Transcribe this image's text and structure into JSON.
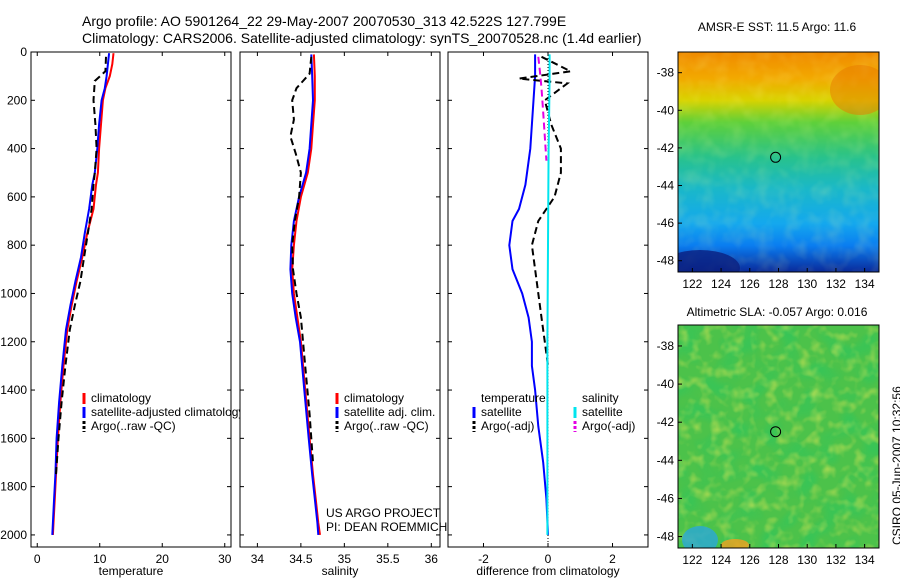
{
  "header": {
    "line1": "Argo profile: AO 5901264_22 29-May-2007 20070530_313 42.522S 127.799E",
    "line2": "Climatology: CARS2006. Satellite-adjusted climatology: synTS_20070528.nc (1.4d earlier)"
  },
  "footer_side": "CSIRO 05-Jun-2007 10:32:56",
  "colors": {
    "climatology": "#ff0000",
    "satellite": "#0000ff",
    "argo": "#000000",
    "salinity_satellite": "#00e5ee",
    "salinity_argo": "#e400e4"
  },
  "chart_data": [
    {
      "type": "line",
      "id": "temperature",
      "xlabel": "temperature",
      "ylabel": "",
      "xlim": [
        -1,
        31
      ],
      "ylim": [
        2050,
        0
      ],
      "xticks": [
        0,
        10,
        20,
        30
      ],
      "yticks": [
        0,
        200,
        400,
        600,
        800,
        1000,
        1200,
        1400,
        1600,
        1800,
        2000
      ],
      "y_inverted": true,
      "legend": [
        "climatology",
        "satellite-adjusted climatology",
        "Argo(..raw -QC)"
      ],
      "series": [
        {
          "name": "climatology",
          "color": "#ff0000",
          "style": "solid",
          "x": [
            12.2,
            12.0,
            11.6,
            10.9,
            10.5,
            10.2,
            9.9,
            9.7,
            9.4,
            9.0,
            8.0,
            7.2,
            6.3,
            5.5,
            4.8,
            4.2,
            3.7,
            3.3,
            3.0,
            2.8,
            2.6,
            2.5
          ],
          "y": [
            5,
            50,
            100,
            150,
            200,
            300,
            400,
            500,
            550,
            650,
            750,
            850,
            950,
            1050,
            1150,
            1300,
            1450,
            1600,
            1750,
            1850,
            1950,
            2000
          ]
        },
        {
          "name": "satellite-adjusted climatology",
          "color": "#0000ff",
          "style": "solid",
          "x": [
            11.5,
            11.3,
            11.1,
            10.8,
            10.3,
            9.9,
            9.6,
            9.2,
            8.8,
            8.3,
            7.6,
            7.0,
            6.1,
            5.3,
            4.6,
            4.0,
            3.5,
            3.1,
            2.9,
            2.7,
            2.5,
            2.4
          ],
          "y": [
            5,
            50,
            100,
            150,
            200,
            300,
            400,
            500,
            550,
            650,
            750,
            850,
            950,
            1050,
            1150,
            1300,
            1450,
            1600,
            1750,
            1850,
            1950,
            2000
          ]
        },
        {
          "name": "Argo(..raw -QC)",
          "color": "#000000",
          "style": "dashed",
          "x": [
            11.0,
            10.9,
            9.2,
            9.0,
            9.3,
            9.5,
            9.2,
            9.0,
            8.7,
            8.1,
            7.5,
            6.9,
            6.0,
            5.2,
            4.5,
            3.9,
            3.4,
            3.0
          ],
          "y": [
            20,
            80,
            120,
            200,
            300,
            400,
            500,
            550,
            650,
            750,
            850,
            950,
            1050,
            1150,
            1300,
            1450,
            1600,
            1750
          ]
        }
      ]
    },
    {
      "type": "line",
      "id": "salinity",
      "xlabel": "salinity",
      "xlim": [
        33.8,
        36.1
      ],
      "ylim": [
        2050,
        0
      ],
      "xticks": [
        34,
        34.5,
        35,
        35.5,
        36
      ],
      "y_inverted": true,
      "legend": [
        "climatology",
        "satellite adj. clim.",
        "Argo(..raw -QC)"
      ],
      "annotations": [
        "US ARGO PROJECT",
        "PI: DEAN ROEMMICH"
      ],
      "series": [
        {
          "name": "climatology",
          "color": "#ff0000",
          "style": "solid",
          "x": [
            34.65,
            34.66,
            34.66,
            34.64,
            34.62,
            34.58,
            34.5,
            34.45,
            34.42,
            34.4,
            34.42,
            34.46,
            34.5,
            34.55,
            34.6,
            34.64,
            34.67,
            34.7,
            34.72
          ],
          "y": [
            10,
            100,
            200,
            300,
            400,
            500,
            600,
            700,
            800,
            900,
            1000,
            1100,
            1200,
            1400,
            1600,
            1750,
            1850,
            1950,
            2000
          ]
        },
        {
          "name": "satellite adj. clim.",
          "color": "#0000ff",
          "style": "solid",
          "x": [
            34.62,
            34.63,
            34.64,
            34.62,
            34.6,
            34.56,
            34.48,
            34.42,
            34.39,
            34.38,
            34.4,
            34.44,
            34.49,
            34.54,
            34.59,
            34.63,
            34.66,
            34.69,
            34.7
          ],
          "y": [
            10,
            100,
            200,
            300,
            400,
            500,
            600,
            700,
            800,
            900,
            1000,
            1100,
            1200,
            1400,
            1600,
            1750,
            1850,
            1950,
            2000
          ]
        },
        {
          "name": "Argo(..raw -QC)",
          "color": "#000000",
          "style": "dashed",
          "x": [
            34.62,
            34.6,
            34.45,
            34.4,
            34.42,
            34.38,
            34.44,
            34.5,
            34.48,
            34.43,
            34.4,
            34.41,
            34.45,
            34.5,
            34.55,
            34.6,
            34.64
          ],
          "y": [
            20,
            90,
            150,
            200,
            280,
            350,
            420,
            500,
            600,
            700,
            800,
            900,
            1000,
            1100,
            1300,
            1500,
            1700
          ]
        }
      ]
    },
    {
      "type": "line",
      "id": "difference",
      "xlabel": "difference from climatology",
      "xlim": [
        -3.1,
        3.1
      ],
      "ylim": [
        2050,
        0
      ],
      "xticks": [
        -2,
        0,
        2
      ],
      "y_inverted": true,
      "legend_left_title": "temperature",
      "legend_right_title": "salinity",
      "legend": [
        "satellite",
        "Argo(-adj)",
        "satellite",
        "Argo(-adj)"
      ],
      "series": [
        {
          "name": "temperature satellite",
          "color": "#0000ff",
          "style": "solid",
          "x": [
            -0.4,
            -0.4,
            -0.45,
            -0.5,
            -0.55,
            -0.7,
            -0.9,
            -1.1,
            -1.2,
            -1.1,
            -0.8,
            -0.6,
            -0.5,
            -0.5,
            -0.4,
            -0.3,
            -0.15,
            -0.05,
            0.0
          ],
          "y": [
            10,
            100,
            200,
            300,
            400,
            550,
            650,
            700,
            800,
            900,
            1000,
            1100,
            1200,
            1300,
            1400,
            1550,
            1700,
            1850,
            2000
          ]
        },
        {
          "name": "temperature Argo(-adj)",
          "color": "#000000",
          "style": "dashed",
          "x": [
            -0.2,
            0.7,
            -0.9,
            0.6,
            -0.1,
            0.1,
            0.4,
            0.4,
            0.2,
            -0.3,
            -0.5,
            -0.4,
            -0.3,
            -0.2,
            -0.1,
            0.0
          ],
          "y": [
            20,
            80,
            110,
            130,
            200,
            300,
            400,
            500,
            600,
            700,
            800,
            900,
            1000,
            1100,
            1200,
            1300
          ]
        },
        {
          "name": "salinity satellite",
          "color": "#00e5ee",
          "style": "solid",
          "x": [
            0.05,
            0.05,
            0.04,
            0.03,
            0.02,
            0.01,
            0.0,
            -0.01,
            -0.02,
            -0.02,
            -0.02,
            -0.02,
            -0.02,
            -0.02
          ],
          "y": [
            10,
            100,
            200,
            300,
            400,
            600,
            800,
            1000,
            1200,
            1400,
            1600,
            1800,
            1900,
            2000
          ]
        },
        {
          "name": "salinity Argo(-adj)",
          "color": "#e400e4",
          "style": "dashed",
          "x": [
            -0.3,
            -0.25,
            -0.2,
            -0.15,
            -0.1,
            -0.05
          ],
          "y": [
            20,
            80,
            150,
            250,
            350,
            450
          ]
        }
      ]
    },
    {
      "type": "heatmap",
      "id": "sst_map",
      "title": "AMSR-E SST: 11.5 Argo: 11.6",
      "xlim": [
        121,
        135
      ],
      "ylim": [
        -48.6,
        -36.9
      ],
      "xticks": [
        122,
        124,
        126,
        128,
        130,
        132,
        134
      ],
      "yticks": [
        -38,
        -40,
        -42,
        -44,
        -46,
        -48
      ],
      "marker": {
        "lon": 127.8,
        "lat": -42.5
      }
    },
    {
      "type": "heatmap",
      "id": "sla_map",
      "title": "Altimetric SLA: -0.057 Argo: 0.016",
      "xlim": [
        121,
        135
      ],
      "ylim": [
        -48.6,
        -36.9
      ],
      "xticks": [
        122,
        124,
        126,
        128,
        130,
        132,
        134
      ],
      "yticks": [
        -38,
        -40,
        -42,
        -44,
        -46,
        -48
      ],
      "marker": {
        "lon": 127.8,
        "lat": -42.5
      }
    }
  ]
}
